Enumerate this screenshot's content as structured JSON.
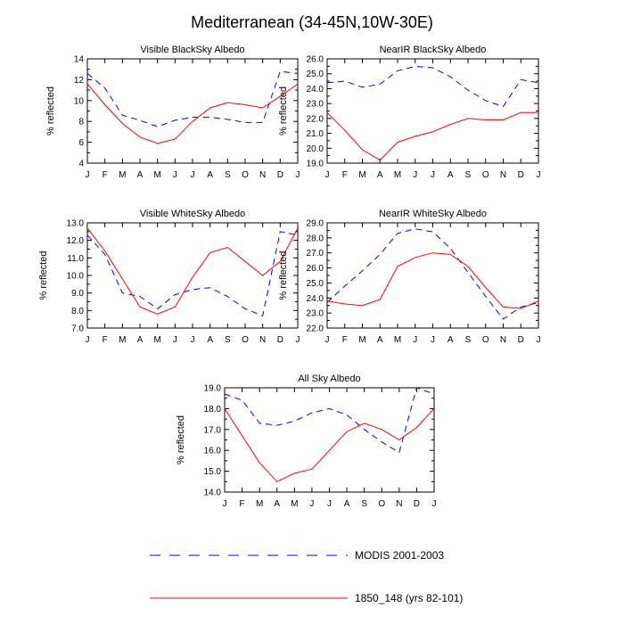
{
  "title": "Mediterranean (34-45N,10W-30E)",
  "months": [
    "J",
    "F",
    "M",
    "A",
    "M",
    "J",
    "J",
    "A",
    "S",
    "O",
    "N",
    "D",
    "J"
  ],
  "ylabel": "% reflected",
  "colors": {
    "modis": "#0000ff",
    "model": "#ff0000"
  },
  "legend": [
    {
      "label": "MODIS 2001-2003",
      "style": "dashed",
      "color": "#0000ff"
    },
    {
      "label": "1850_148 (yrs 82-101)",
      "style": "solid",
      "color": "#ff0000"
    }
  ],
  "chart_data": [
    {
      "type": "line",
      "title": "Visible BlackSky Albedo",
      "ylabel": "% reflected",
      "ylim": [
        4,
        14
      ],
      "yticks": [
        4,
        6,
        8,
        10,
        12,
        14
      ],
      "ytick_labels": [
        "4",
        "6",
        "8",
        "10",
        "12",
        "14"
      ],
      "x": [
        "J",
        "F",
        "M",
        "A",
        "M",
        "J",
        "J",
        "A",
        "S",
        "O",
        "N",
        "D",
        "J"
      ],
      "series": [
        {
          "name": "MODIS 2001-2003",
          "values": [
            12.6,
            11.2,
            8.6,
            8.1,
            7.5,
            8.1,
            8.4,
            8.4,
            8.2,
            7.9,
            7.9,
            12.8,
            12.6
          ]
        },
        {
          "name": "1850_148 (yrs 82-101)",
          "values": [
            11.6,
            9.6,
            7.8,
            6.5,
            5.9,
            6.3,
            8.0,
            9.3,
            9.8,
            9.6,
            9.3,
            10.4,
            11.6
          ]
        }
      ]
    },
    {
      "type": "line",
      "title": "NearIR BlackSky Albedo",
      "ylabel": "% reflected",
      "ylim": [
        19,
        26
      ],
      "yticks": [
        19,
        20,
        21,
        22,
        23,
        24,
        25,
        26
      ],
      "ytick_labels": [
        "19.0",
        "20.0",
        "21.0",
        "22.0",
        "23.0",
        "24.0",
        "25.0",
        "26.0"
      ],
      "x": [
        "J",
        "F",
        "M",
        "A",
        "M",
        "J",
        "J",
        "A",
        "S",
        "O",
        "N",
        "D",
        "J"
      ],
      "series": [
        {
          "name": "MODIS 2001-2003",
          "values": [
            24.4,
            24.5,
            24.1,
            24.3,
            25.2,
            25.5,
            25.4,
            24.8,
            23.9,
            23.2,
            22.8,
            24.6,
            24.4
          ]
        },
        {
          "name": "1850_148 (yrs 82-101)",
          "values": [
            22.4,
            21.2,
            19.9,
            19.2,
            20.4,
            20.8,
            21.1,
            21.6,
            22.0,
            21.9,
            21.9,
            22.4,
            22.4
          ]
        }
      ]
    },
    {
      "type": "line",
      "title": "Visible WhiteSky Albedo",
      "ylabel": "% reflected",
      "ylim": [
        7,
        13
      ],
      "yticks": [
        7,
        8,
        9,
        10,
        11,
        12,
        13
      ],
      "ytick_labels": [
        "7.0",
        "8.0",
        "9.0",
        "10.0",
        "11.0",
        "12.0",
        "13.0"
      ],
      "x": [
        "J",
        "F",
        "M",
        "A",
        "M",
        "J",
        "J",
        "A",
        "S",
        "O",
        "N",
        "D",
        "J"
      ],
      "series": [
        {
          "name": "MODIS 2001-2003",
          "values": [
            12.3,
            11.2,
            9.0,
            8.8,
            8.1,
            8.9,
            9.2,
            9.3,
            8.8,
            8.1,
            7.7,
            12.5,
            12.3
          ]
        },
        {
          "name": "1850_148 (yrs 82-101)",
          "values": [
            12.7,
            11.4,
            9.8,
            8.2,
            7.8,
            8.2,
            9.9,
            11.3,
            11.6,
            10.8,
            10.0,
            10.8,
            12.7
          ]
        }
      ]
    },
    {
      "type": "line",
      "title": "NearIR WhiteSky Albedo",
      "ylabel": "% reflected",
      "ylim": [
        22,
        29
      ],
      "yticks": [
        22,
        23,
        24,
        25,
        26,
        27,
        28,
        29
      ],
      "ytick_labels": [
        "22.0",
        "23.0",
        "24.0",
        "25.0",
        "26.0",
        "27.0",
        "28.0",
        "29.0"
      ],
      "x": [
        "J",
        "F",
        "M",
        "A",
        "M",
        "J",
        "J",
        "A",
        "S",
        "O",
        "N",
        "D",
        "J"
      ],
      "series": [
        {
          "name": "MODIS 2001-2003",
          "values": [
            23.7,
            24.8,
            25.8,
            26.9,
            28.3,
            28.6,
            28.4,
            27.3,
            25.7,
            24.1,
            22.6,
            23.4,
            23.7
          ]
        },
        {
          "name": "1850_148 (yrs 82-101)",
          "values": [
            23.8,
            23.6,
            23.5,
            23.9,
            26.1,
            26.7,
            27.0,
            26.9,
            26.1,
            24.7,
            23.4,
            23.3,
            23.8
          ]
        }
      ]
    },
    {
      "type": "line",
      "title": "All Sky Albedo",
      "ylabel": "% reflected",
      "ylim": [
        14,
        19
      ],
      "yticks": [
        14,
        15,
        16,
        17,
        18,
        19
      ],
      "ytick_labels": [
        "14.0",
        "15.0",
        "16.0",
        "17.0",
        "18.0",
        "19.0"
      ],
      "x": [
        "J",
        "F",
        "M",
        "A",
        "M",
        "J",
        "J",
        "A",
        "S",
        "O",
        "N",
        "D",
        "J"
      ],
      "series": [
        {
          "name": "MODIS 2001-2003",
          "values": [
            18.7,
            18.4,
            17.3,
            17.2,
            17.4,
            17.8,
            18.0,
            17.7,
            17.0,
            16.4,
            15.9,
            19.0,
            18.7
          ]
        },
        {
          "name": "1850_148 (yrs 82-101)",
          "values": [
            18.0,
            16.7,
            15.4,
            14.5,
            14.9,
            15.1,
            16.0,
            16.9,
            17.3,
            17.0,
            16.5,
            17.1,
            18.0
          ]
        }
      ]
    }
  ]
}
